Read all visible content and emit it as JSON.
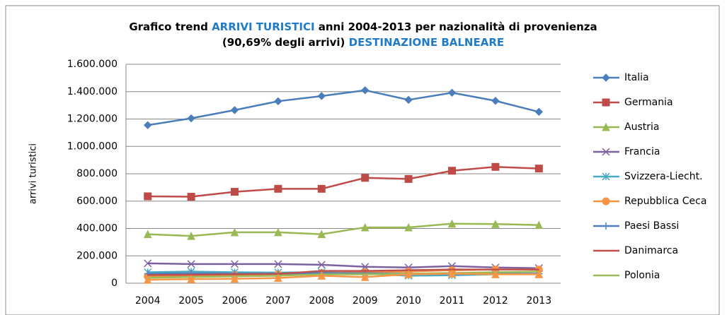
{
  "chart_data": {
    "type": "line",
    "title": [
      [
        {
          "text": "Grafico trend ",
          "color": "#000000"
        },
        {
          "text": "ARRIVI TURISTICI",
          "color": "#1f7ac8"
        },
        {
          "text": " anni 2004-2013 per nazionalità di provenienza",
          "color": "#000000"
        }
      ],
      [
        {
          "text": "(90,69% degli arrivi)    ",
          "color": "#000000"
        },
        {
          "text": "DESTINAZIONE BALNEARE",
          "color": "#1f7ac8"
        }
      ]
    ],
    "y_label": "arrivi turistici",
    "categories": [
      "2004",
      "2005",
      "2006",
      "2007",
      "2008",
      "2009",
      "2010",
      "2011",
      "2012",
      "2013"
    ],
    "ylim": [
      0,
      1600000
    ],
    "yticks": [
      0,
      {
        "value": 200000,
        "label": "200.000"
      },
      {
        "value": 400000,
        "label": "400.000"
      },
      {
        "value": 600000,
        "label": "600.000"
      },
      {
        "value": 800000,
        "label": "800.000"
      },
      {
        "value": 1000000,
        "label": "1.000.000"
      },
      {
        "value": 1200000,
        "label": "1.200.000"
      },
      {
        "value": 1400000,
        "label": "1.400.000"
      },
      {
        "value": 1600000,
        "label": "1.600.000"
      }
    ],
    "grid": true,
    "legend": "right",
    "series": [
      {
        "name": "Italia",
        "color": "#4a7ebb",
        "marker": "diamond",
        "values": [
          1155000,
          1205000,
          1265000,
          1330000,
          1368000,
          1410000,
          1340000,
          1392000,
          1333000,
          1252000
        ]
      },
      {
        "name": "Germania",
        "color": "#be4b48",
        "marker": "square",
        "values": [
          635000,
          632000,
          668000,
          690000,
          690000,
          770000,
          762000,
          822000,
          850000,
          838000
        ]
      },
      {
        "name": "Austria",
        "color": "#98b954",
        "marker": "triangle",
        "values": [
          358000,
          345000,
          372000,
          372000,
          358000,
          408000,
          408000,
          435000,
          432000,
          425000
        ]
      },
      {
        "name": "Francia",
        "color": "#7d60a0",
        "marker": "x",
        "values": [
          145000,
          140000,
          140000,
          140000,
          135000,
          120000,
          115000,
          125000,
          115000,
          110000
        ]
      },
      {
        "name": "Svizzera-Liecht.",
        "color": "#46aac5",
        "marker": "star",
        "values": [
          80000,
          85000,
          80000,
          78000,
          80000,
          70000,
          55000,
          58000,
          65000,
          70000
        ]
      },
      {
        "name": "Repubblica Ceca",
        "color": "#f69240",
        "marker": "circle",
        "values": [
          50000,
          55000,
          60000,
          65000,
          75000,
          80000,
          85000,
          95000,
          100000,
          100000
        ]
      },
      {
        "name": "Paesi Bassi",
        "color": "#4f81bd",
        "marker": "plus",
        "values": [
          70000,
          72000,
          70000,
          70000,
          75000,
          72000,
          70000,
          68000,
          70000,
          70000
        ]
      },
      {
        "name": "Danimarca",
        "color": "#c0504d",
        "marker": "none",
        "values": [
          60000,
          62000,
          65000,
          68000,
          90000,
          90000,
          95000,
          100000,
          100000,
          100000
        ]
      },
      {
        "name": "Polonia",
        "color": "#9bbb59",
        "marker": "none",
        "values": [
          40000,
          45000,
          50000,
          55000,
          65000,
          65000,
          70000,
          75000,
          80000,
          85000
        ]
      },
      {
        "color": "#f79646",
        "marker": "triangle",
        "values": [
          25000,
          30000,
          32000,
          38000,
          55000,
          45000,
          65000,
          70000,
          65000,
          65000
        ]
      }
    ]
  }
}
